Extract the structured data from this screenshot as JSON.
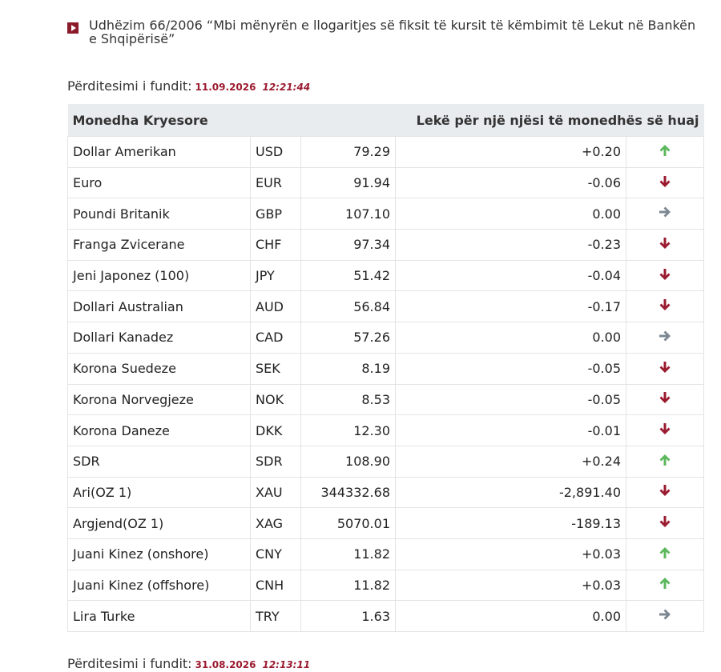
{
  "notice": {
    "text": "Udhëzim 66/2006 “Mbi mënyrën e llogaritjes së fiksit të kursit të këmbimit të Lekut në Bankën e Shqipërisë”"
  },
  "update_top": {
    "label": "Përditesimi i fundit:",
    "date": "11.09.2026",
    "time": "12:21:44"
  },
  "table": {
    "header": [
      "Monedha Kryesore",
      "Lekë për një njësi të monedhës së huaj"
    ],
    "rows": [
      {
        "name": "Dollar Amerikan",
        "code": "USD",
        "rate": "79.29",
        "change": "+0.20",
        "trend": "up"
      },
      {
        "name": "Euro",
        "code": "EUR",
        "rate": "91.94",
        "change": "-0.06",
        "trend": "down"
      },
      {
        "name": "Poundi Britanik",
        "code": "GBP",
        "rate": "107.10",
        "change": "0.00",
        "trend": "flat"
      },
      {
        "name": "Franga Zvicerane",
        "code": "CHF",
        "rate": "97.34",
        "change": "-0.23",
        "trend": "down"
      },
      {
        "name": "Jeni Japonez (100)",
        "code": "JPY",
        "rate": "51.42",
        "change": "-0.04",
        "trend": "down"
      },
      {
        "name": "Dollari Australian",
        "code": "AUD",
        "rate": "56.84",
        "change": "-0.17",
        "trend": "down"
      },
      {
        "name": "Dollari Kanadez",
        "code": "CAD",
        "rate": "57.26",
        "change": "0.00",
        "trend": "flat"
      },
      {
        "name": "Korona Suedeze",
        "code": "SEK",
        "rate": "8.19",
        "change": "-0.05",
        "trend": "down"
      },
      {
        "name": "Korona Norvegjeze",
        "code": "NOK",
        "rate": "8.53",
        "change": "-0.05",
        "trend": "down"
      },
      {
        "name": "Korona Daneze",
        "code": "DKK",
        "rate": "12.30",
        "change": "-0.01",
        "trend": "down"
      },
      {
        "name": "SDR",
        "code": "SDR",
        "rate": "108.90",
        "change": "+0.24",
        "trend": "up"
      },
      {
        "name": "Ari(OZ 1)",
        "code": "XAU",
        "rate": "344332.68",
        "change": "-2,891.40",
        "trend": "down"
      },
      {
        "name": "Argjend(OZ 1)",
        "code": "XAG",
        "rate": "5070.01",
        "change": "-189.13",
        "trend": "down"
      },
      {
        "name": "Juani Kinez (onshore)",
        "code": "CNY",
        "rate": "11.82",
        "change": "+0.03",
        "trend": "up"
      },
      {
        "name": "Juani Kinez (offshore)",
        "code": "CNH",
        "rate": "11.82",
        "change": "+0.03",
        "trend": "up"
      },
      {
        "name": "Lira Turke",
        "code": "TRY",
        "rate": "1.63",
        "change": "0.00",
        "trend": "flat"
      }
    ]
  },
  "update_bottom": {
    "label": "Përditesimi i fundit:",
    "date": "31.08.2026",
    "time": "12:13:11"
  }
}
